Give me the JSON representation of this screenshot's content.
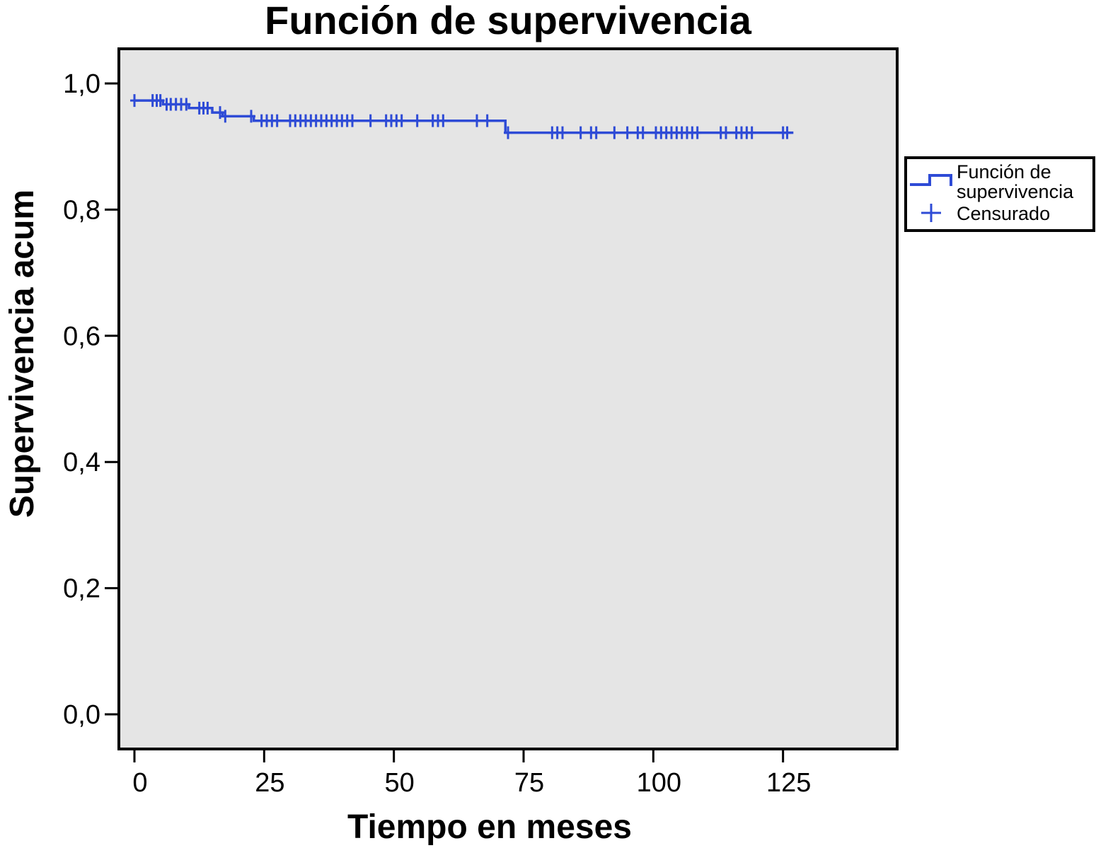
{
  "chart_data": {
    "type": "line",
    "title": "Función de supervivencia",
    "xlabel": "Tiempo en meses",
    "ylabel": "Supervivencia acum",
    "xlim": [
      -3,
      147
    ],
    "ylim": [
      -0.055,
      1.055
    ],
    "x_ticks": [
      0,
      25,
      50,
      75,
      100,
      125
    ],
    "x_tick_labels": [
      "0",
      "25",
      "50",
      "75",
      "100",
      "125"
    ],
    "y_ticks": [
      0.0,
      0.2,
      0.4,
      0.6,
      0.8,
      1.0
    ],
    "y_tick_labels": [
      "0,0",
      "0,2",
      "0,4",
      "0,6",
      "0,8",
      "1,0"
    ],
    "plot_background": "#e5e5e5",
    "series_color": "#2e4bd6",
    "grid": false,
    "legend_position": "right",
    "series": [
      {
        "name": "Función de supervivencia",
        "step": [
          [
            0,
            0.973
          ],
          [
            5.5,
            0.973
          ],
          [
            5.5,
            0.967
          ],
          [
            10.5,
            0.967
          ],
          [
            10.5,
            0.961
          ],
          [
            15,
            0.961
          ],
          [
            15,
            0.954
          ],
          [
            17,
            0.954
          ],
          [
            17,
            0.948
          ],
          [
            23,
            0.948
          ],
          [
            23,
            0.941
          ],
          [
            71.5,
            0.941
          ],
          [
            71.5,
            0.922
          ],
          [
            127,
            0.922
          ]
        ]
      },
      {
        "name": "Censurado",
        "censored": [
          [
            0,
            0.973
          ],
          [
            3.5,
            0.973
          ],
          [
            4.3,
            0.973
          ],
          [
            5,
            0.973
          ],
          [
            6.2,
            0.967
          ],
          [
            7,
            0.967
          ],
          [
            8,
            0.967
          ],
          [
            9,
            0.967
          ],
          [
            10,
            0.967
          ],
          [
            12.5,
            0.961
          ],
          [
            13.3,
            0.961
          ],
          [
            14.1,
            0.961
          ],
          [
            16.5,
            0.954
          ],
          [
            17.5,
            0.948
          ],
          [
            22.5,
            0.948
          ],
          [
            24.5,
            0.941
          ],
          [
            25.5,
            0.941
          ],
          [
            26.5,
            0.941
          ],
          [
            27.5,
            0.941
          ],
          [
            30,
            0.941
          ],
          [
            31,
            0.941
          ],
          [
            32,
            0.941
          ],
          [
            33,
            0.941
          ],
          [
            34,
            0.941
          ],
          [
            35,
            0.941
          ],
          [
            36,
            0.941
          ],
          [
            37,
            0.941
          ],
          [
            38,
            0.941
          ],
          [
            39,
            0.941
          ],
          [
            40,
            0.941
          ],
          [
            41,
            0.941
          ],
          [
            42,
            0.941
          ],
          [
            45.5,
            0.941
          ],
          [
            48.5,
            0.941
          ],
          [
            49.5,
            0.941
          ],
          [
            50.5,
            0.941
          ],
          [
            51.5,
            0.941
          ],
          [
            54.5,
            0.941
          ],
          [
            57.5,
            0.941
          ],
          [
            58.5,
            0.941
          ],
          [
            59.5,
            0.941
          ],
          [
            66,
            0.941
          ],
          [
            68,
            0.941
          ],
          [
            72,
            0.922
          ],
          [
            80.5,
            0.922
          ],
          [
            81.5,
            0.922
          ],
          [
            82.5,
            0.922
          ],
          [
            86,
            0.922
          ],
          [
            88,
            0.922
          ],
          [
            89,
            0.922
          ],
          [
            92.5,
            0.922
          ],
          [
            95,
            0.922
          ],
          [
            97,
            0.922
          ],
          [
            98,
            0.922
          ],
          [
            100.5,
            0.922
          ],
          [
            101.5,
            0.922
          ],
          [
            102.5,
            0.922
          ],
          [
            103.5,
            0.922
          ],
          [
            104.5,
            0.922
          ],
          [
            105.5,
            0.922
          ],
          [
            106.5,
            0.922
          ],
          [
            107.5,
            0.922
          ],
          [
            108.5,
            0.922
          ],
          [
            113,
            0.922
          ],
          [
            114,
            0.922
          ],
          [
            116,
            0.922
          ],
          [
            117,
            0.922
          ],
          [
            118,
            0.922
          ],
          [
            119,
            0.922
          ],
          [
            125,
            0.922
          ],
          [
            125.8,
            0.922
          ]
        ]
      }
    ]
  },
  "legend": {
    "line1": "Función de",
    "line2": "supervivencia",
    "censored_label": "Censurado"
  }
}
